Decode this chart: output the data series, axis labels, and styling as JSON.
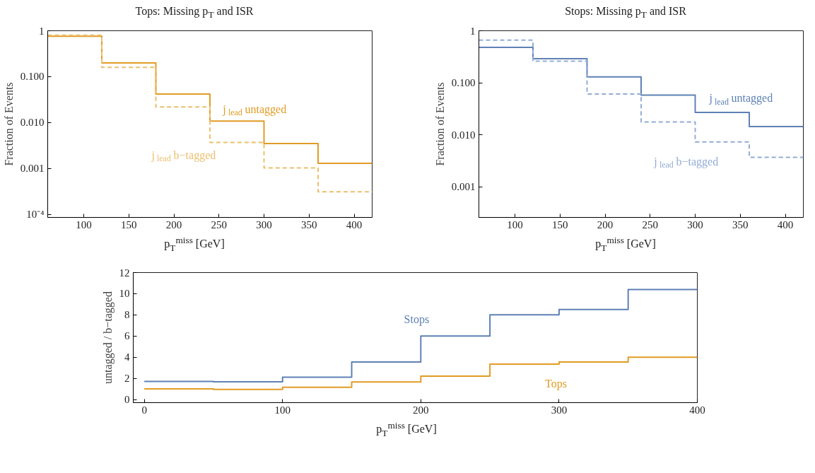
{
  "chart_data": [
    {
      "type": "histogram",
      "title": "Tops: Missing p$_{T}$ and ISR",
      "xlabel": "p$_{T}$$^{miss}$ [GeV]",
      "ylabel": "Fraction of Events",
      "log": "y",
      "grid": false,
      "bins": [
        60,
        120,
        180,
        240,
        300,
        360,
        420
      ],
      "xlim": [
        60,
        420
      ],
      "xticks": [
        100,
        150,
        200,
        250,
        300,
        350,
        400
      ],
      "ylim": [
        8.6e-05,
        1
      ],
      "yticks": [
        1,
        {
          "value": 0.1,
          "label": "0.100"
        },
        {
          "value": 0.01,
          "label": "0.010"
        },
        {
          "value": 0.001,
          "label": "0.001"
        },
        {
          "value": 0.0001,
          "label": "10⁻⁴"
        }
      ],
      "series": [
        {
          "color": "#e19c24",
          "line_style": "solid",
          "values": [
            0.76,
            0.2,
            0.042,
            0.0108,
            0.0035,
            0.0013
          ]
        },
        {
          "color": "#ecbf6f",
          "line_style": "dashed",
          "values": [
            0.8,
            0.16,
            0.022,
            0.0037,
            0.00103,
            0.00031
          ]
        }
      ],
      "annotations": [
        "j$_{lead}$ untagged",
        "j$_{lead}$ b−tagged"
      ]
    },
    {
      "type": "histogram",
      "title": "Stops: Missing p$_{T}$ and ISR",
      "xlabel": "p$_{T}$$^{miss}$ [GeV]",
      "ylabel": "Fraction of Events",
      "log": "y",
      "grid": false,
      "bins": [
        60,
        120,
        180,
        240,
        300,
        360,
        420
      ],
      "xlim": [
        60,
        420
      ],
      "xticks": [
        100,
        150,
        200,
        250,
        300,
        350,
        400
      ],
      "ylim": [
        0.00026,
        1
      ],
      "yticks": [
        1,
        {
          "value": 0.1,
          "label": "0.100"
        },
        {
          "value": 0.01,
          "label": "0.010"
        },
        {
          "value": 0.001,
          "label": "0.001"
        }
      ],
      "series": [
        {
          "color": "#5e81b5",
          "line_style": "solid",
          "values": [
            0.48,
            0.29,
            0.13,
            0.058,
            0.027,
            0.0144
          ]
        },
        {
          "color": "#93acd6",
          "line_style": "dashed",
          "values": [
            0.66,
            0.26,
            0.061,
            0.0177,
            0.0073,
            0.0037
          ]
        }
      ],
      "annotations": [
        "j$_{lead}$ untagged",
        "j$_{lead}$ b−tagged"
      ]
    },
    {
      "type": "histogram",
      "xlabel": "p$_{T}$$^{miss}$ [GeV]",
      "ylabel": "untagged / b−tagged",
      "grid": false,
      "bins": [
        0,
        50,
        100,
        150,
        200,
        250,
        300,
        350,
        400
      ],
      "xlim": [
        -8,
        400
      ],
      "xticks": [
        0,
        100,
        200,
        300,
        400
      ],
      "ylim": [
        -0.3,
        12
      ],
      "yticks": [
        0,
        2,
        4,
        6,
        8,
        10,
        12
      ],
      "series": [
        {
          "color": "#5e81b5",
          "line_style": "solid",
          "values": [
            1.7,
            1.68,
            2.1,
            3.55,
            6.0,
            8.0,
            8.5,
            10.4
          ]
        },
        {
          "color": "#e19c24",
          "line_style": "solid",
          "values": [
            1.0,
            0.95,
            1.15,
            1.65,
            2.2,
            3.35,
            3.55,
            4.0
          ]
        }
      ],
      "annotations": [
        "Stops",
        "Tops"
      ]
    }
  ]
}
